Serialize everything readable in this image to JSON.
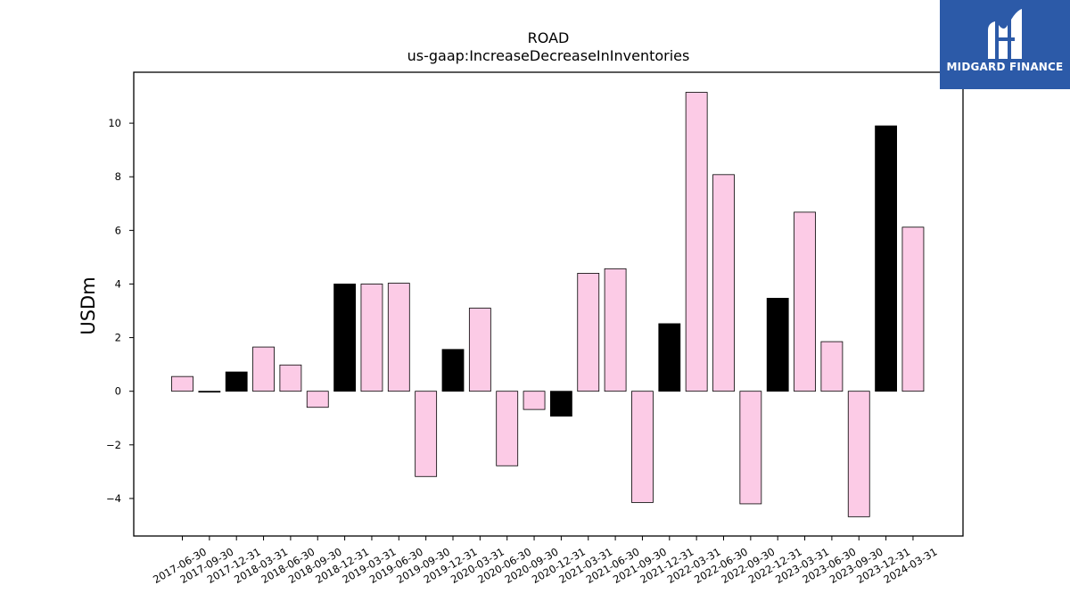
{
  "chart_data": {
    "type": "bar",
    "title": "ROAD",
    "subtitle": "us-gaap:IncreaseDecreaseInInventories",
    "xlabel": "",
    "ylabel": "USDm",
    "ylim": [
      -5.4,
      11.9
    ],
    "yticks": [
      -4,
      -2,
      0,
      2,
      4,
      6,
      8,
      10
    ],
    "ytick_labels": [
      "−4",
      "−2",
      "0",
      "2",
      "4",
      "6",
      "8",
      "10"
    ],
    "categories": [
      "2017-06-30",
      "2017-09-30",
      "2017-12-31",
      "2018-03-31",
      "2018-06-30",
      "2018-09-30",
      "2018-12-31",
      "2019-03-31",
      "2019-06-30",
      "2019-09-30",
      "2019-12-31",
      "2020-03-31",
      "2020-06-30",
      "2020-09-30",
      "2020-12-31",
      "2021-03-31",
      "2021-06-30",
      "2021-09-30",
      "2021-12-31",
      "2022-03-31",
      "2022-06-30",
      "2022-09-30",
      "2022-12-31",
      "2023-03-31",
      "2023-06-30",
      "2023-09-30",
      "2023-12-31",
      "2024-03-31"
    ],
    "values": [
      0.55,
      -0.03,
      0.72,
      1.65,
      0.98,
      -0.6,
      4.0,
      4.0,
      4.03,
      -3.18,
      1.56,
      3.1,
      -2.78,
      -0.68,
      -0.93,
      4.4,
      4.57,
      -4.15,
      2.52,
      11.15,
      8.08,
      -4.2,
      3.47,
      6.68,
      1.85,
      -4.68,
      9.9,
      6.12
    ],
    "bar_colors": [
      "#fccbe6",
      "#000000",
      "#000000",
      "#fccbe6",
      "#fccbe6",
      "#fccbe6",
      "#000000",
      "#fccbe6",
      "#fccbe6",
      "#fccbe6",
      "#000000",
      "#fccbe6",
      "#fccbe6",
      "#fccbe6",
      "#000000",
      "#fccbe6",
      "#fccbe6",
      "#fccbe6",
      "#000000",
      "#fccbe6",
      "#fccbe6",
      "#fccbe6",
      "#000000",
      "#fccbe6",
      "#fccbe6",
      "#fccbe6",
      "#000000",
      "#fccbe6"
    ],
    "grid": false,
    "legend": "none"
  },
  "logo": {
    "text": "MIDGARD FINANCE",
    "bg_color": "#2c5aa8"
  }
}
